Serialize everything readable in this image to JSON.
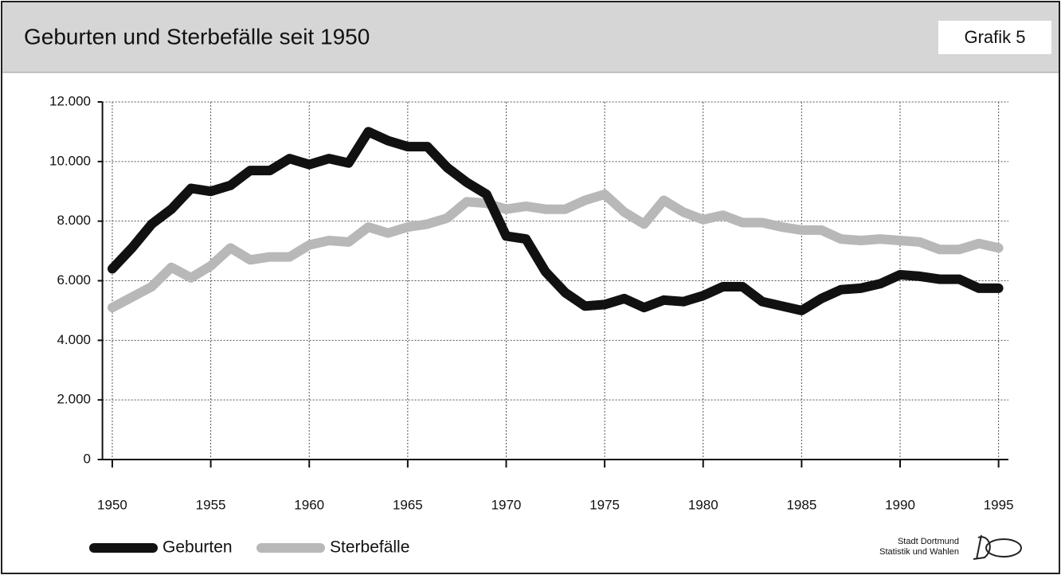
{
  "chart_data": {
    "type": "line",
    "title": "Geburten und Sterbefälle seit 1950",
    "badge": "Grafik 5",
    "source": [
      "Stadt Dortmund",
      "Statistik und Wahlen"
    ],
    "x": [
      1950,
      1951,
      1952,
      1953,
      1954,
      1955,
      1956,
      1957,
      1958,
      1959,
      1960,
      1961,
      1962,
      1963,
      1964,
      1965,
      1966,
      1967,
      1968,
      1969,
      1970,
      1971,
      1972,
      1973,
      1974,
      1975,
      1976,
      1977,
      1978,
      1979,
      1980,
      1981,
      1982,
      1983,
      1984,
      1985,
      1986,
      1987,
      1988,
      1989,
      1990,
      1991,
      1992,
      1993,
      1994,
      1995
    ],
    "series": [
      {
        "name": "Geburten",
        "color": "#111111",
        "values": [
          6400,
          7100,
          7900,
          8400,
          9100,
          9000,
          9200,
          9700,
          9700,
          10100,
          9900,
          10100,
          9950,
          11000,
          10700,
          10500,
          10500,
          9800,
          9300,
          8900,
          7500,
          7400,
          6300,
          5600,
          5150,
          5200,
          5400,
          5100,
          5350,
          5300,
          5500,
          5800,
          5800,
          5300,
          5150,
          5000,
          5400,
          5700,
          5750,
          5900,
          6200,
          6150,
          6050,
          6050,
          5750,
          5750
        ]
      },
      {
        "name": "Sterbefälle",
        "color": "#b8b8b8",
        "values": [
          5100,
          5450,
          5800,
          6450,
          6100,
          6500,
          7100,
          6700,
          6800,
          6800,
          7200,
          7350,
          7300,
          7800,
          7600,
          7800,
          7900,
          8100,
          8650,
          8600,
          8400,
          8500,
          8400,
          8400,
          8700,
          8900,
          8300,
          7900,
          8700,
          8300,
          8050,
          8200,
          7950,
          7950,
          7800,
          7700,
          7700,
          7400,
          7350,
          7400,
          7350,
          7300,
          7050,
          7050,
          7250,
          7100
        ]
      }
    ],
    "xlim": [
      1949.5,
      1995.5
    ],
    "xticks": [
      1950,
      1955,
      1960,
      1965,
      1970,
      1975,
      1980,
      1985,
      1990,
      1995
    ],
    "ylim": [
      0,
      12000
    ],
    "yticks": [
      0,
      {
        "value": 2000,
        "label": "2.000"
      },
      {
        "value": 4000,
        "label": "4.000"
      },
      {
        "value": 6000,
        "label": "6.000"
      },
      {
        "value": 8000,
        "label": "8.000"
      },
      {
        "value": 10000,
        "label": "10.000"
      },
      {
        "value": 12000,
        "label": "12.000"
      }
    ],
    "grid": true
  }
}
